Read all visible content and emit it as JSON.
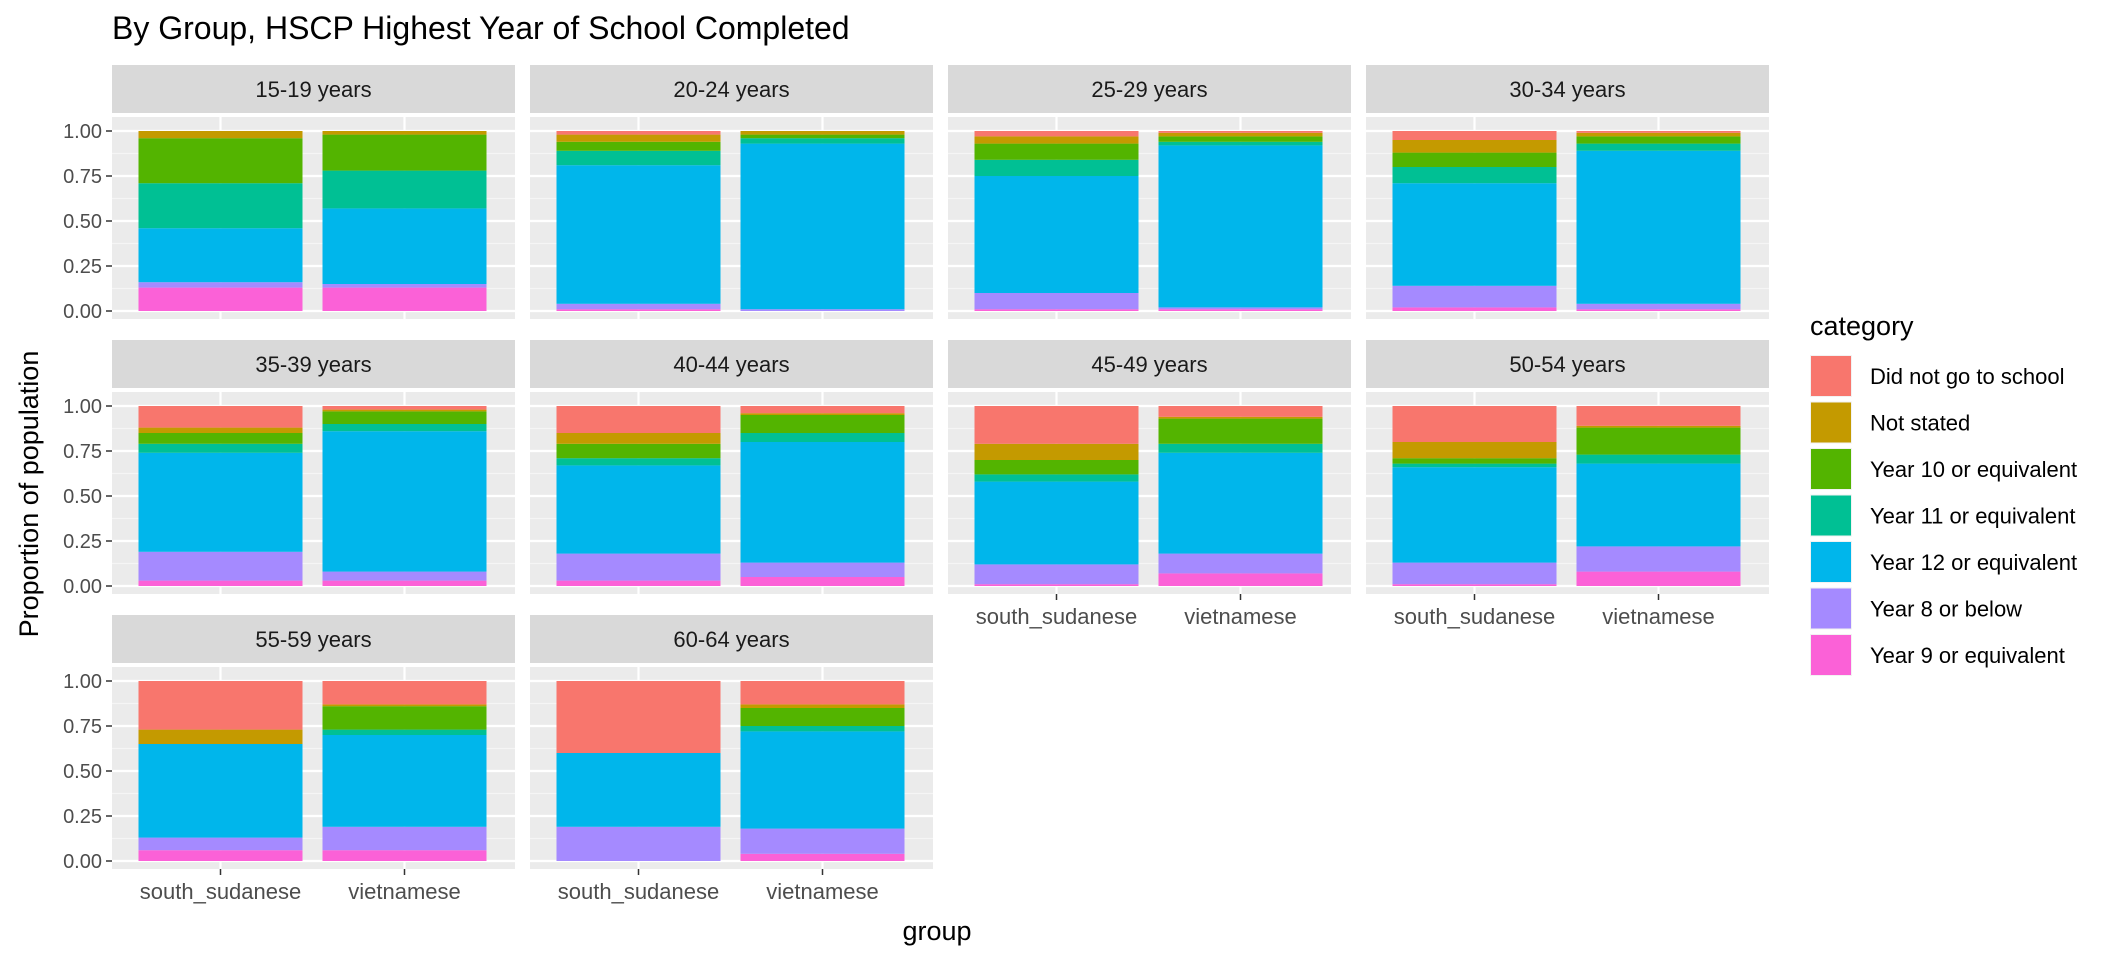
{
  "chart_data": {
    "type": "bar",
    "stacked": true,
    "title": "By Group,  HSCP Highest Year of School Completed",
    "xlabel": "group",
    "ylabel": "Proportion of population",
    "ylim": [
      0,
      1
    ],
    "yticks": [
      "0.00",
      "0.25",
      "0.50",
      "0.75",
      "1.00"
    ],
    "categories": [
      "south_sudanese",
      "vietnamese"
    ],
    "legend": {
      "title": "category",
      "position": "right",
      "entries": [
        {
          "name": "Did not go to school",
          "color": "#F8766D"
        },
        {
          "name": "Not stated",
          "color": "#C49A00"
        },
        {
          "name": "Year 10 or equivalent",
          "color": "#53B400"
        },
        {
          "name": "Year 11 or equivalent",
          "color": "#00C094"
        },
        {
          "name": "Year 12 or equivalent",
          "color": "#00B6EB"
        },
        {
          "name": "Year 8 or below",
          "color": "#A58AFF"
        },
        {
          "name": "Year 9 or equivalent",
          "color": "#FB61D7"
        }
      ]
    },
    "stack_order_bottom_to_top": [
      "Year 9 or equivalent",
      "Year 8 or below",
      "Year 12 or equivalent",
      "Year 11 or equivalent",
      "Year 10 or equivalent",
      "Not stated",
      "Did not go to school"
    ],
    "facets": [
      {
        "label": "15-19 years",
        "bars": [
          {
            "group": "south_sudanese",
            "values": {
              "Year 9 or equivalent": 0.13,
              "Year 8 or below": 0.03,
              "Year 12 or equivalent": 0.3,
              "Year 11 or equivalent": 0.25,
              "Year 10 or equivalent": 0.25,
              "Not stated": 0.04,
              "Did not go to school": 0.0
            }
          },
          {
            "group": "vietnamese",
            "values": {
              "Year 9 or equivalent": 0.13,
              "Year 8 or below": 0.02,
              "Year 12 or equivalent": 0.42,
              "Year 11 or equivalent": 0.21,
              "Year 10 or equivalent": 0.2,
              "Not stated": 0.02,
              "Did not go to school": 0.0
            }
          }
        ]
      },
      {
        "label": "20-24 years",
        "bars": [
          {
            "group": "south_sudanese",
            "values": {
              "Year 9 or equivalent": 0.01,
              "Year 8 or below": 0.03,
              "Year 12 or equivalent": 0.77,
              "Year 11 or equivalent": 0.08,
              "Year 10 or equivalent": 0.05,
              "Not stated": 0.04,
              "Did not go to school": 0.02
            }
          },
          {
            "group": "vietnamese",
            "values": {
              "Year 9 or equivalent": 0.0,
              "Year 8 or below": 0.01,
              "Year 12 or equivalent": 0.92,
              "Year 11 or equivalent": 0.03,
              "Year 10 or equivalent": 0.02,
              "Not stated": 0.02,
              "Did not go to school": 0.0
            }
          }
        ]
      },
      {
        "label": "25-29 years",
        "bars": [
          {
            "group": "south_sudanese",
            "values": {
              "Year 9 or equivalent": 0.01,
              "Year 8 or below": 0.09,
              "Year 12 or equivalent": 0.65,
              "Year 11 or equivalent": 0.09,
              "Year 10 or equivalent": 0.09,
              "Not stated": 0.04,
              "Did not go to school": 0.03
            }
          },
          {
            "group": "vietnamese",
            "values": {
              "Year 9 or equivalent": 0.01,
              "Year 8 or below": 0.01,
              "Year 12 or equivalent": 0.9,
              "Year 11 or equivalent": 0.02,
              "Year 10 or equivalent": 0.03,
              "Not stated": 0.02,
              "Did not go to school": 0.01
            }
          }
        ]
      },
      {
        "label": "30-34 years",
        "bars": [
          {
            "group": "south_sudanese",
            "values": {
              "Year 9 or equivalent": 0.02,
              "Year 8 or below": 0.12,
              "Year 12 or equivalent": 0.57,
              "Year 11 or equivalent": 0.09,
              "Year 10 or equivalent": 0.08,
              "Not stated": 0.07,
              "Did not go to school": 0.05
            }
          },
          {
            "group": "vietnamese",
            "values": {
              "Year 9 or equivalent": 0.01,
              "Year 8 or below": 0.03,
              "Year 12 or equivalent": 0.85,
              "Year 11 or equivalent": 0.04,
              "Year 10 or equivalent": 0.04,
              "Not stated": 0.02,
              "Did not go to school": 0.01
            }
          }
        ]
      },
      {
        "label": "35-39 years",
        "bars": [
          {
            "group": "south_sudanese",
            "values": {
              "Year 9 or equivalent": 0.03,
              "Year 8 or below": 0.16,
              "Year 12 or equivalent": 0.55,
              "Year 11 or equivalent": 0.05,
              "Year 10 or equivalent": 0.06,
              "Not stated": 0.03,
              "Did not go to school": 0.12
            }
          },
          {
            "group": "vietnamese",
            "values": {
              "Year 9 or equivalent": 0.03,
              "Year 8 or below": 0.05,
              "Year 12 or equivalent": 0.78,
              "Year 11 or equivalent": 0.04,
              "Year 10 or equivalent": 0.07,
              "Not stated": 0.01,
              "Did not go to school": 0.02
            }
          }
        ]
      },
      {
        "label": "40-44 years",
        "bars": [
          {
            "group": "south_sudanese",
            "values": {
              "Year 9 or equivalent": 0.03,
              "Year 8 or below": 0.15,
              "Year 12 or equivalent": 0.49,
              "Year 11 or equivalent": 0.04,
              "Year 10 or equivalent": 0.08,
              "Not stated": 0.06,
              "Did not go to school": 0.15
            }
          },
          {
            "group": "vietnamese",
            "values": {
              "Year 9 or equivalent": 0.05,
              "Year 8 or below": 0.08,
              "Year 12 or equivalent": 0.67,
              "Year 11 or equivalent": 0.05,
              "Year 10 or equivalent": 0.1,
              "Not stated": 0.01,
              "Did not go to school": 0.04
            }
          }
        ]
      },
      {
        "label": "45-49 years",
        "bars": [
          {
            "group": "south_sudanese",
            "values": {
              "Year 9 or equivalent": 0.01,
              "Year 8 or below": 0.11,
              "Year 12 or equivalent": 0.46,
              "Year 11 or equivalent": 0.04,
              "Year 10 or equivalent": 0.08,
              "Not stated": 0.09,
              "Did not go to school": 0.21
            }
          },
          {
            "group": "vietnamese",
            "values": {
              "Year 9 or equivalent": 0.07,
              "Year 8 or below": 0.11,
              "Year 12 or equivalent": 0.56,
              "Year 11 or equivalent": 0.05,
              "Year 10 or equivalent": 0.14,
              "Not stated": 0.01,
              "Did not go to school": 0.06
            }
          }
        ]
      },
      {
        "label": "50-54 years",
        "bars": [
          {
            "group": "south_sudanese",
            "values": {
              "Year 9 or equivalent": 0.01,
              "Year 8 or below": 0.12,
              "Year 12 or equivalent": 0.53,
              "Year 11 or equivalent": 0.02,
              "Year 10 or equivalent": 0.03,
              "Not stated": 0.09,
              "Did not go to school": 0.2
            }
          },
          {
            "group": "vietnamese",
            "values": {
              "Year 9 or equivalent": 0.08,
              "Year 8 or below": 0.14,
              "Year 12 or equivalent": 0.46,
              "Year 11 or equivalent": 0.05,
              "Year 10 or equivalent": 0.15,
              "Not stated": 0.01,
              "Did not go to school": 0.11
            }
          }
        ]
      },
      {
        "label": "55-59 years",
        "bars": [
          {
            "group": "south_sudanese",
            "values": {
              "Year 9 or equivalent": 0.06,
              "Year 8 or below": 0.07,
              "Year 12 or equivalent": 0.52,
              "Year 11 or equivalent": 0.0,
              "Year 10 or equivalent": 0.0,
              "Not stated": 0.08,
              "Did not go to school": 0.27
            }
          },
          {
            "group": "vietnamese",
            "values": {
              "Year 9 or equivalent": 0.06,
              "Year 8 or below": 0.13,
              "Year 12 or equivalent": 0.51,
              "Year 11 or equivalent": 0.03,
              "Year 10 or equivalent": 0.13,
              "Not stated": 0.01,
              "Did not go to school": 0.13
            }
          }
        ]
      },
      {
        "label": "60-64 years",
        "bars": [
          {
            "group": "south_sudanese",
            "values": {
              "Year 9 or equivalent": 0.0,
              "Year 8 or below": 0.19,
              "Year 12 or equivalent": 0.41,
              "Year 11 or equivalent": 0.0,
              "Year 10 or equivalent": 0.0,
              "Not stated": 0.0,
              "Did not go to school": 0.4
            }
          },
          {
            "group": "vietnamese",
            "values": {
              "Year 9 or equivalent": 0.04,
              "Year 8 or below": 0.14,
              "Year 12 or equivalent": 0.54,
              "Year 11 or equivalent": 0.03,
              "Year 10 or equivalent": 0.1,
              "Not stated": 0.02,
              "Did not go to school": 0.13
            }
          }
        ]
      }
    ]
  }
}
